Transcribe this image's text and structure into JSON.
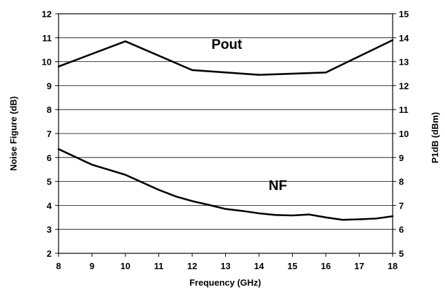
{
  "chart_data": {
    "type": "line",
    "xlabel": "Frequency (GHz)",
    "ylabel": "Noise Figure (dB)",
    "y2label": "P1dB (dBm)",
    "xlim": [
      8,
      18
    ],
    "ylim": [
      2,
      12
    ],
    "y2lim": [
      5,
      15
    ],
    "x_ticks": [
      8,
      9,
      10,
      11,
      12,
      13,
      14,
      15,
      16,
      17,
      18
    ],
    "y_ticks": [
      2,
      3,
      4,
      5,
      6,
      7,
      8,
      9,
      10,
      11,
      12
    ],
    "y2_ticks": [
      5,
      6,
      7,
      8,
      9,
      10,
      11,
      12,
      13,
      14,
      15
    ],
    "grid": true,
    "series": [
      {
        "name": "Pout",
        "axis": "right",
        "x": [
          8,
          10,
          12,
          14,
          16,
          18
        ],
        "y": [
          12.8,
          13.85,
          12.65,
          12.45,
          12.55,
          13.9
        ]
      },
      {
        "name": "NF",
        "axis": "left",
        "x": [
          8,
          9,
          10,
          11,
          11.5,
          12,
          12.5,
          13,
          13.5,
          14,
          14.5,
          15,
          15.5,
          16,
          16.5,
          17,
          17.5,
          18
        ],
        "y": [
          6.35,
          5.7,
          5.28,
          4.65,
          4.38,
          4.18,
          4.02,
          3.85,
          3.77,
          3.67,
          3.6,
          3.58,
          3.62,
          3.5,
          3.4,
          3.42,
          3.45,
          3.55
        ]
      }
    ]
  }
}
